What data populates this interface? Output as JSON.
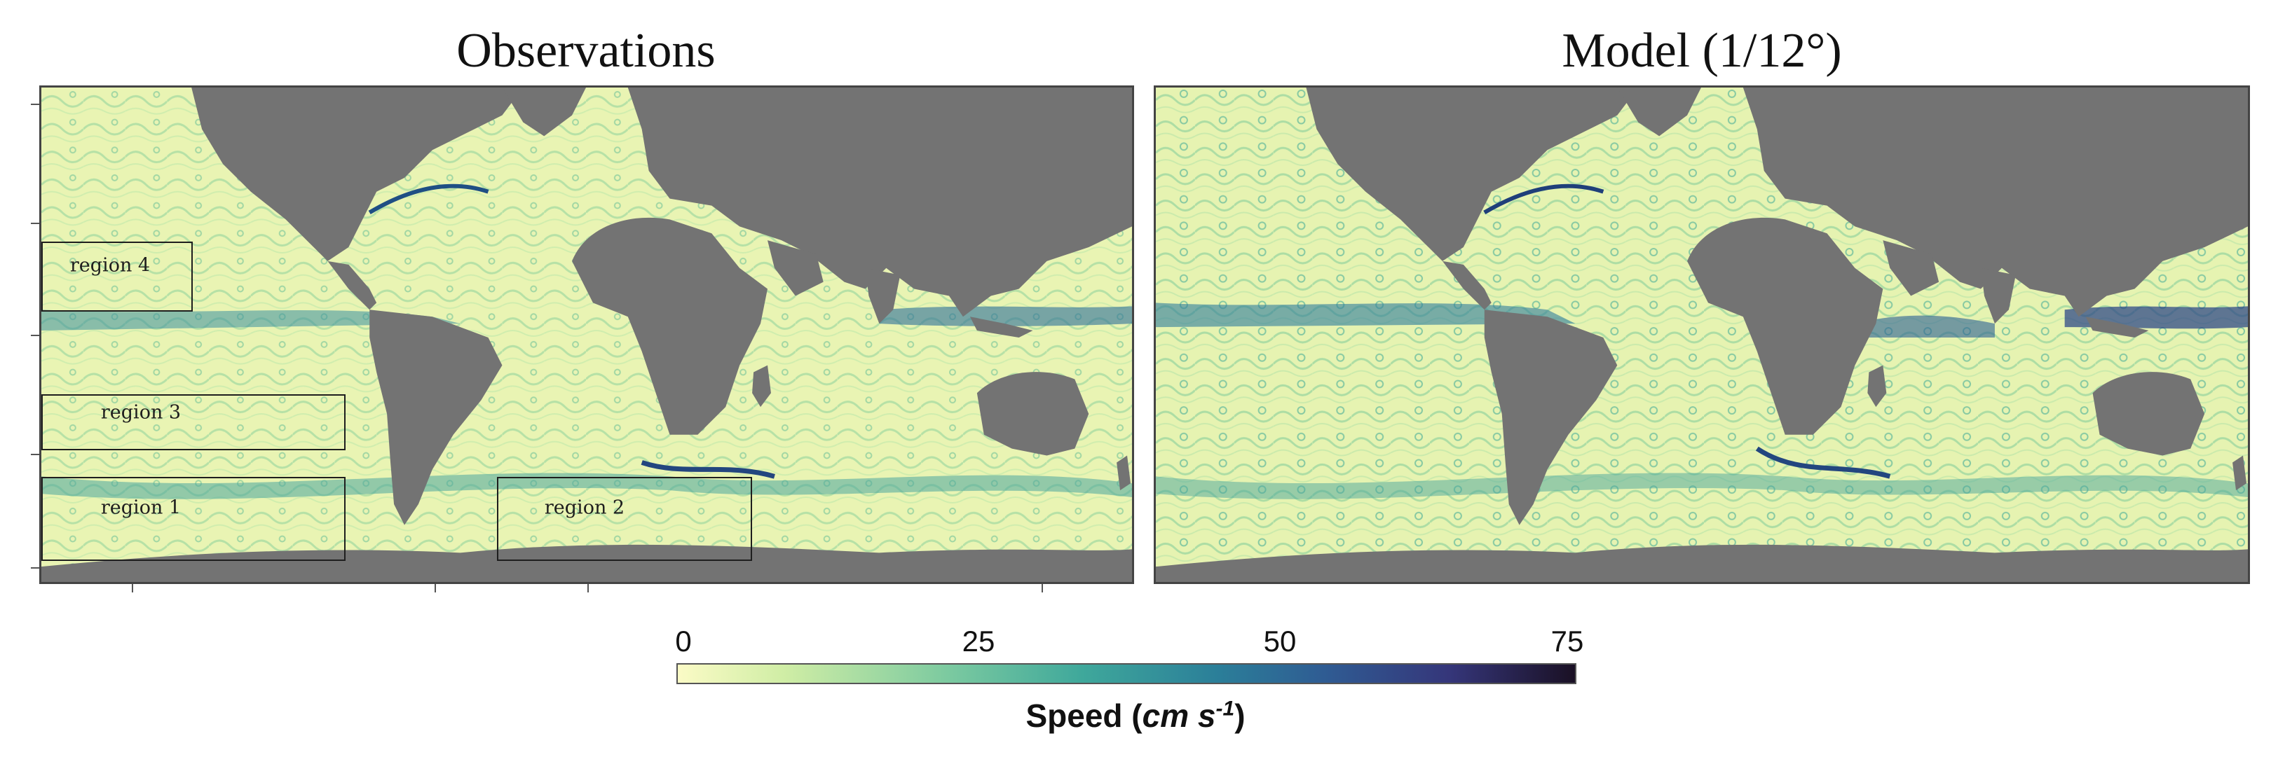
{
  "panels": {
    "left_title": "Observations",
    "right_title": "Model (1/12°)"
  },
  "regions": [
    {
      "id": "region-4",
      "label": "region 4"
    },
    {
      "id": "region-3",
      "label": "region 3"
    },
    {
      "id": "region-1",
      "label": "region 1"
    },
    {
      "id": "region-2",
      "label": "region 2"
    }
  ],
  "colorbar": {
    "ticks": [
      "0",
      "25",
      "50",
      "75"
    ],
    "label_main": "Speed (",
    "label_unit": "cm s",
    "label_exp": "-1",
    "label_close": ")",
    "range": [
      0,
      75
    ],
    "colors": [
      "#fbfbc6",
      "#cfeda5",
      "#7ccaa0",
      "#3fa89b",
      "#2b7f99",
      "#2f5c93",
      "#35367a",
      "#1a1024"
    ]
  },
  "colors": {
    "land": "#737373",
    "ocean_base": "#e9f4b3"
  }
}
